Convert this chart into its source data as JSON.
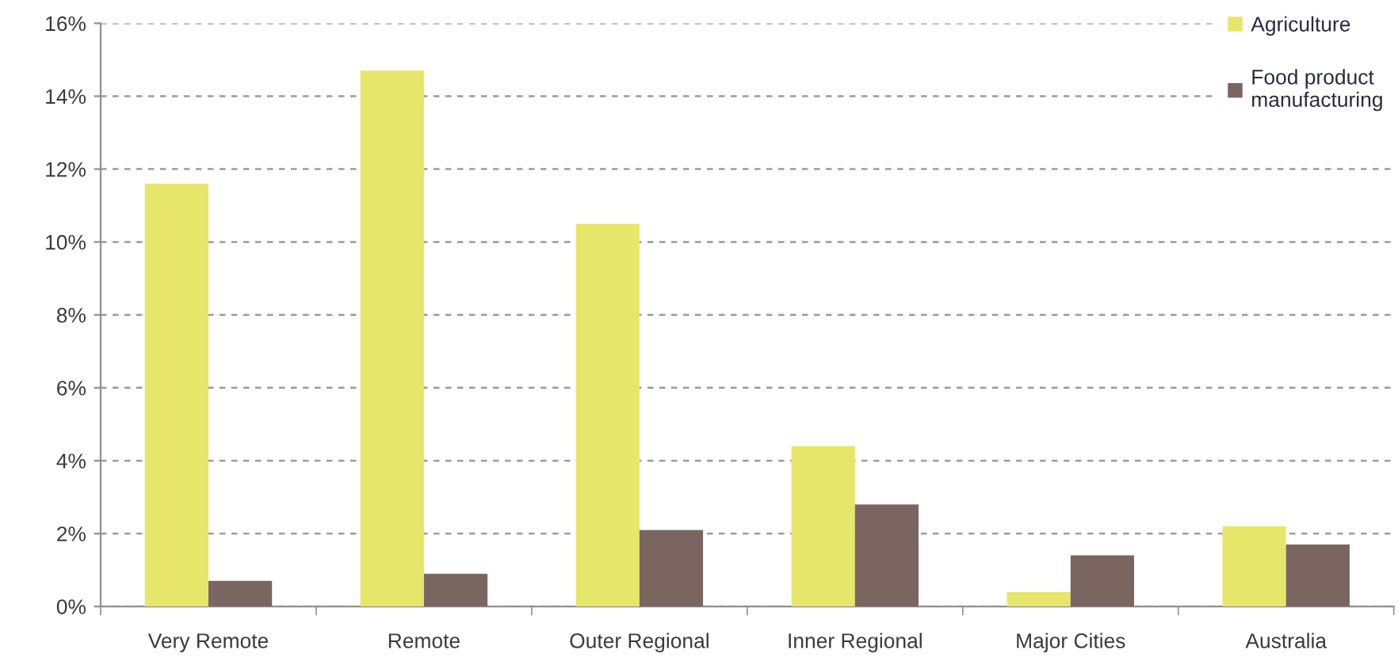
{
  "chart_data": {
    "type": "bar",
    "categories": [
      "Very Remote",
      "Remote",
      "Outer Regional",
      "Inner Regional",
      "Major Cities",
      "Australia"
    ],
    "series": [
      {
        "name": "Agriculture",
        "color": "#e6e66a",
        "values": [
          11.6,
          14.7,
          10.5,
          4.4,
          0.4,
          2.2
        ]
      },
      {
        "name": "Food product\nmanufacturing",
        "color": "#7b6560",
        "values": [
          0.7,
          0.9,
          2.1,
          2.8,
          1.4,
          1.7
        ]
      }
    ],
    "ylim": [
      0,
      16
    ],
    "yticks": [
      {
        "value": 0,
        "label": "0%"
      },
      {
        "value": 2,
        "label": "2%"
      },
      {
        "value": 4,
        "label": "4%"
      },
      {
        "value": 6,
        "label": "6%"
      },
      {
        "value": 8,
        "label": "8%"
      },
      {
        "value": 10,
        "label": "10%"
      },
      {
        "value": 12,
        "label": "12%"
      },
      {
        "value": 14,
        "label": "14%"
      },
      {
        "value": 16,
        "label": "16%"
      }
    ],
    "grid": "y",
    "legend": "top right"
  }
}
